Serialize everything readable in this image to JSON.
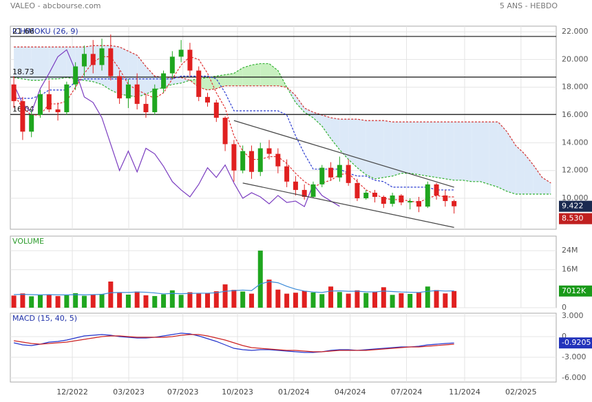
{
  "header": {
    "source": "VALEO - abcbourse.com",
    "period": "5 ANS - HEBDO"
  },
  "chart_data": [
    {
      "type": "candlestick",
      "title": "ICHIMOKU (26, 9)",
      "xlim": [
        -0.4,
        61.6
      ],
      "ylim": [
        7.77,
        22.4
      ],
      "yticks": [
        {
          "value": 22,
          "label": "22.000"
        },
        {
          "value": 20,
          "label": "20.000"
        },
        {
          "value": 18,
          "label": "18.000"
        },
        {
          "value": 16,
          "label": "16.000"
        },
        {
          "value": 14,
          "label": "14.000"
        },
        {
          "value": 12,
          "label": "12.000"
        },
        {
          "value": 10,
          "label": "10.000"
        }
      ],
      "up_color": "#1fa61f",
      "down_color": "#e02020",
      "candles": [
        [
          18.2,
          18.8,
          16.5,
          17.0
        ],
        [
          17.0,
          17.3,
          14.2,
          14.8
        ],
        [
          14.8,
          16.4,
          14.4,
          16.0
        ],
        [
          16.0,
          17.8,
          15.8,
          17.5
        ],
        [
          17.5,
          18.5,
          16.2,
          16.4
        ],
        [
          16.4,
          16.9,
          15.6,
          16.2
        ],
        [
          16.2,
          18.4,
          16.0,
          18.2
        ],
        [
          18.2,
          19.8,
          17.8,
          19.5
        ],
        [
          19.5,
          21.0,
          18.8,
          20.4
        ],
        [
          20.4,
          21.4,
          19.0,
          19.6
        ],
        [
          19.6,
          21.5,
          19.2,
          20.8
        ],
        [
          20.8,
          21.8,
          18.5,
          18.8
        ],
        [
          18.8,
          19.2,
          16.8,
          17.2
        ],
        [
          17.2,
          18.6,
          16.5,
          18.2
        ],
        [
          18.2,
          19.0,
          16.4,
          16.8
        ],
        [
          16.8,
          17.5,
          15.8,
          16.2
        ],
        [
          16.2,
          18.2,
          16.0,
          17.9
        ],
        [
          17.9,
          19.2,
          17.6,
          19.0
        ],
        [
          19.0,
          20.6,
          18.6,
          20.2
        ],
        [
          20.2,
          21.4,
          19.8,
          20.7
        ],
        [
          20.7,
          21.2,
          18.8,
          19.2
        ],
        [
          19.2,
          19.5,
          17.0,
          17.3
        ],
        [
          17.3,
          17.6,
          16.6,
          16.9
        ],
        [
          16.9,
          17.1,
          15.5,
          15.8
        ],
        [
          15.8,
          15.9,
          13.4,
          13.9
        ],
        [
          13.9,
          14.2,
          11.2,
          12.0
        ],
        [
          12.0,
          13.8,
          11.8,
          13.4
        ],
        [
          13.4,
          13.8,
          11.4,
          11.9
        ],
        [
          11.9,
          14.0,
          11.6,
          13.6
        ],
        [
          13.6,
          14.2,
          12.8,
          13.2
        ],
        [
          13.2,
          13.6,
          11.8,
          12.3
        ],
        [
          12.3,
          12.8,
          10.8,
          11.2
        ],
        [
          11.2,
          11.6,
          10.2,
          10.6
        ],
        [
          10.6,
          11.0,
          9.9,
          10.1
        ],
        [
          10.1,
          11.2,
          10.0,
          11.0
        ],
        [
          11.0,
          12.4,
          10.8,
          12.2
        ],
        [
          12.2,
          12.6,
          11.3,
          11.5
        ],
        [
          11.5,
          13.0,
          11.2,
          12.4
        ],
        [
          12.4,
          12.8,
          10.9,
          11.1
        ],
        [
          11.1,
          11.4,
          9.8,
          10.0
        ],
        [
          10.0,
          10.6,
          9.9,
          10.4
        ],
        [
          10.4,
          10.6,
          9.7,
          10.1
        ],
        [
          10.1,
          10.2,
          9.3,
          9.6
        ],
        [
          9.6,
          10.4,
          9.4,
          10.2
        ],
        [
          10.2,
          10.3,
          9.5,
          9.7
        ],
        [
          9.7,
          10.0,
          9.2,
          9.8
        ],
        [
          9.8,
          10.1,
          9.0,
          9.4
        ],
        [
          9.4,
          11.2,
          9.3,
          11.0
        ],
        [
          11.0,
          11.1,
          9.9,
          10.2
        ],
        [
          10.2,
          10.6,
          9.4,
          9.8
        ],
        [
          9.8,
          9.9,
          8.9,
          9.422
        ]
      ],
      "lines": [
        {
          "name": "tenkan",
          "color": "#e03030",
          "dash": true,
          "values": [
            17.5,
            16.5,
            16.0,
            16.0,
            16.8,
            16.8,
            17.0,
            18.0,
            19.0,
            19.8,
            20.2,
            20.2,
            19.3,
            18.2,
            17.8,
            17.5,
            17.2,
            17.6,
            18.6,
            19.6,
            20.2,
            20.0,
            19.0,
            17.6,
            16.5,
            14.5,
            13.4,
            12.8,
            12.8,
            13.0,
            13.0,
            12.5,
            11.8,
            11.2,
            10.8,
            11.1,
            11.3,
            11.7,
            11.8,
            11.2,
            10.6,
            10.3,
            10.0,
            9.9,
            9.9,
            9.8,
            9.7,
            10.0,
            10.2,
            10.1,
            10.1
          ]
        },
        {
          "name": "kijun",
          "color": "#2a3ad0",
          "dash": true,
          "values": [
            17.2,
            17.2,
            17.2,
            17.4,
            17.8,
            17.8,
            17.8,
            18.4,
            18.6,
            18.6,
            18.6,
            18.6,
            18.6,
            18.6,
            18.6,
            18.6,
            18.6,
            18.6,
            18.6,
            18.8,
            18.8,
            18.8,
            18.8,
            18.6,
            17.6,
            16.3,
            16.3,
            16.3,
            16.3,
            16.3,
            16.3,
            16.0,
            14.5,
            13.2,
            12.1,
            12.1,
            12.1,
            12.1,
            11.8,
            11.6,
            11.6,
            11.3,
            11.2,
            10.8,
            10.8,
            10.8,
            10.8,
            10.8,
            10.6,
            10.6,
            10.6
          ]
        },
        {
          "name": "chikou",
          "color": "#7a3cc0",
          "dash": false,
          "values": [
            18.2,
            16.8,
            16.2,
            17.9,
            19.0,
            20.2,
            20.7,
            19.2,
            17.3,
            16.9,
            15.8,
            13.9,
            12.0,
            13.4,
            11.9,
            13.6,
            13.2,
            12.3,
            11.2,
            10.6,
            10.1,
            11.0,
            12.2,
            11.5,
            12.4,
            11.1,
            10.0,
            10.4,
            10.1,
            9.6,
            10.2,
            9.7,
            9.8,
            9.4,
            11.0,
            10.2,
            9.8,
            9.422
          ]
        }
      ],
      "span_a": {
        "color": "#30b030",
        "values": [
          18.7,
          18.6,
          18.5,
          18.5,
          18.6,
          18.6,
          18.7,
          18.6,
          18.5,
          18.4,
          18.2,
          17.8,
          17.5,
          17.4,
          17.3,
          17.5,
          17.8,
          18.0,
          18.2,
          18.3,
          18.5,
          18.6,
          18.7,
          18.8,
          18.9,
          19.0,
          19.4,
          19.6,
          19.7,
          19.7,
          19.2,
          18.0,
          16.9,
          16.2,
          15.8,
          15.2,
          14.3,
          13.5,
          12.8,
          12.2,
          11.7,
          11.4,
          11.5,
          11.6,
          11.8,
          11.8,
          11.7,
          11.6,
          11.5,
          11.4,
          11.3,
          11.3,
          11.2,
          11.2,
          11.0,
          10.8,
          10.5,
          10.3,
          10.3,
          10.3,
          10.3,
          10.3
        ]
      },
      "span_b": {
        "color": "#d03030",
        "values": [
          20.9,
          20.9,
          20.9,
          20.9,
          20.9,
          20.9,
          20.9,
          20.9,
          20.9,
          21.0,
          21.0,
          21.0,
          20.9,
          20.6,
          20.3,
          19.5,
          18.8,
          18.7,
          18.7,
          18.7,
          18.5,
          18.0,
          17.8,
          17.9,
          18.1,
          18.1,
          18.1,
          18.1,
          18.1,
          18.1,
          18.1,
          18.0,
          17.4,
          16.5,
          16.2,
          16.0,
          15.8,
          15.7,
          15.7,
          15.7,
          15.6,
          15.6,
          15.6,
          15.5,
          15.5,
          15.5,
          15.5,
          15.5,
          15.5,
          15.5,
          15.5,
          15.5,
          15.5,
          15.5,
          15.5,
          15.5,
          14.8,
          13.8,
          13.2,
          12.4,
          11.5,
          11.1
        ]
      },
      "cloud_colors": {
        "bull": "#c8f0c0",
        "bear": "#dce9f8"
      },
      "levels": [
        21.66,
        18.73,
        16.04
      ],
      "trendlines": [
        [
          25,
          15.6,
          50,
          10.8
        ],
        [
          26,
          11.1,
          50,
          7.9
        ]
      ],
      "markers": [
        {
          "value": 9.422,
          "color": "#1a2a50"
        },
        {
          "value": {
            "value": 8.53,
            "label": "8.530"
          },
          "color": "#c02020"
        }
      ]
    },
    {
      "type": "bar",
      "title": "VOLUME",
      "xlim": [
        -0.4,
        61.6
      ],
      "ylim": [
        0,
        30100000
      ],
      "yticks": [
        {
          "value": 24000000,
          "label": "24M"
        },
        {
          "value": 16000000,
          "label": "16M"
        },
        0
      ],
      "values": [
        5100000,
        6000000,
        4800000,
        5300000,
        5600000,
        4900000,
        5200000,
        6100000,
        5000000,
        5400000,
        5800000,
        11000000,
        6200000,
        5500000,
        6800000,
        5200000,
        4900000,
        5600000,
        7300000,
        5400000,
        6500000,
        5900000,
        6100000,
        6900000,
        9800000,
        7500000,
        6800000,
        5900000,
        24000000,
        11800000,
        7600000,
        5900000,
        6300000,
        7100000,
        6400000,
        5700000,
        8900000,
        6600000,
        5900000,
        7300000,
        6200000,
        6800000,
        8600000,
        5400000,
        6100000,
        5800000,
        6300000,
        8900000,
        7400000,
        6000000,
        7012000
      ],
      "average": {
        "color": "#3a8ad8",
        "values": [
          5500000,
          5600000,
          5500000,
          5400000,
          5500000,
          5400000,
          5400000,
          5500000,
          5400000,
          5500000,
          5600000,
          6300000,
          6400000,
          6400000,
          6600000,
          6500000,
          6200000,
          5800000,
          6000000,
          5900000,
          6000000,
          6100000,
          6100000,
          6300000,
          6900000,
          7200000,
          7400000,
          7200000,
          10000000,
          11000000,
          10500000,
          9000000,
          7800000,
          7000000,
          6600000,
          6400000,
          7000000,
          7100000,
          6900000,
          6900000,
          6700000,
          6600000,
          7000000,
          6800000,
          6600000,
          6500000,
          6400000,
          6900000,
          7200000,
          7000000,
          7100000
        ]
      },
      "marker": {
        "value": {
          "value": 7012000,
          "label": "7012K"
        },
        "color": "#1a9a1a"
      }
    },
    {
      "type": "line",
      "title": "MACD (15, 40, 5)",
      "xlim": [
        -0.4,
        61.6
      ],
      "ylim": [
        -6.6,
        3.4
      ],
      "yticks": [
        {
          "value": 3,
          "label": "3.000"
        },
        0,
        {
          "value": -3,
          "label": "-3.000"
        },
        {
          "value": -6,
          "label": "-6.000"
        }
      ],
      "xticks": [
        {
          "value": 6.64,
          "label": "12/2022"
        },
        {
          "value": 13.05,
          "label": "03/2023"
        },
        {
          "value": 19.2,
          "label": "07/2023"
        },
        {
          "value": 25.4,
          "label": "10/2023"
        },
        {
          "value": 31.8,
          "label": "01/2024"
        },
        {
          "value": 38.2,
          "label": "04/2024"
        },
        {
          "value": 44.6,
          "label": "07/2024"
        },
        {
          "value": 51.2,
          "label": "11/2024"
        },
        {
          "value": 57.6,
          "label": "02/2025"
        }
      ],
      "series": [
        {
          "name": "MACD",
          "color": "#2233cc",
          "values": [
            -0.9,
            -1.2,
            -1.3,
            -1.1,
            -0.8,
            -0.7,
            -0.5,
            -0.2,
            0.1,
            0.2,
            0.3,
            0.2,
            0.0,
            -0.1,
            -0.2,
            -0.2,
            -0.1,
            0.1,
            0.3,
            0.5,
            0.4,
            0.1,
            -0.3,
            -0.7,
            -1.2,
            -1.7,
            -1.9,
            -2.0,
            -1.9,
            -1.9,
            -2.0,
            -2.1,
            -2.2,
            -2.3,
            -2.3,
            -2.2,
            -2.0,
            -1.9,
            -1.9,
            -2.0,
            -1.9,
            -1.8,
            -1.7,
            -1.6,
            -1.5,
            -1.5,
            -1.4,
            -1.2,
            -1.1,
            -1.0,
            -0.9205
          ]
        },
        {
          "name": "Signal",
          "color": "#cc2222",
          "values": [
            -0.6,
            -0.8,
            -1.0,
            -1.1,
            -1.0,
            -0.9,
            -0.8,
            -0.6,
            -0.4,
            -0.2,
            0.0,
            0.1,
            0.1,
            0.0,
            -0.1,
            -0.1,
            -0.1,
            -0.1,
            0.0,
            0.2,
            0.3,
            0.3,
            0.1,
            -0.2,
            -0.5,
            -0.9,
            -1.3,
            -1.6,
            -1.7,
            -1.8,
            -1.9,
            -2.0,
            -2.0,
            -2.1,
            -2.2,
            -2.2,
            -2.1,
            -2.0,
            -2.0,
            -2.0,
            -2.0,
            -1.9,
            -1.8,
            -1.7,
            -1.6,
            -1.5,
            -1.5,
            -1.4,
            -1.3,
            -1.2,
            -1.1
          ]
        }
      ],
      "marker": {
        "value": -0.9205,
        "color": "#2233bb"
      }
    }
  ]
}
